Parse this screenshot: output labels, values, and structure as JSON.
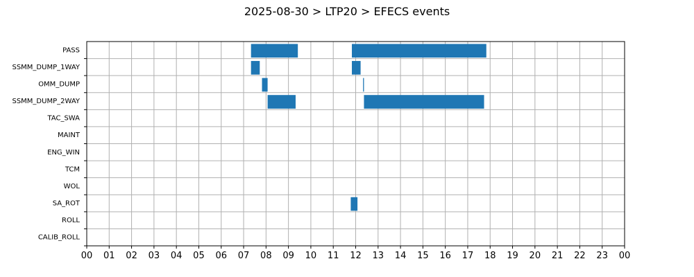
{
  "chart_data": {
    "type": "gantt",
    "title": "2025-08-30 > LTP20 > EFECS events",
    "xlabel": "",
    "ylabel": "",
    "xlim": [
      0,
      24
    ],
    "x_ticks": [
      "00",
      "01",
      "02",
      "03",
      "04",
      "05",
      "06",
      "07",
      "08",
      "09",
      "10",
      "11",
      "12",
      "13",
      "14",
      "15",
      "16",
      "17",
      "18",
      "19",
      "20",
      "21",
      "22",
      "23",
      "00"
    ],
    "categories": [
      "PASS",
      "SSMM_DUMP_1WAY",
      "OMM_DUMP",
      "SSMM_DUMP_2WAY",
      "TAC_SWA",
      "MAINT",
      "ENG_WIN",
      "TCM",
      "WOL",
      "SA_ROT",
      "ROLL",
      "CALIB_ROLL"
    ],
    "grid": true,
    "bar_color": "#1f77b4",
    "events": [
      {
        "category": "PASS",
        "start": 7.33,
        "end": 9.42
      },
      {
        "category": "PASS",
        "start": 11.83,
        "end": 17.83
      },
      {
        "category": "SSMM_DUMP_1WAY",
        "start": 7.33,
        "end": 7.72
      },
      {
        "category": "SSMM_DUMP_1WAY",
        "start": 11.83,
        "end": 12.22
      },
      {
        "category": "OMM_DUMP",
        "start": 7.82,
        "end": 8.07
      },
      {
        "category": "OMM_DUMP",
        "start": 12.33,
        "end": 12.37
      },
      {
        "category": "SSMM_DUMP_2WAY",
        "start": 8.07,
        "end": 9.32
      },
      {
        "category": "SSMM_DUMP_2WAY",
        "start": 12.37,
        "end": 17.73
      },
      {
        "category": "SA_ROT",
        "start": 11.78,
        "end": 12.08
      }
    ]
  }
}
